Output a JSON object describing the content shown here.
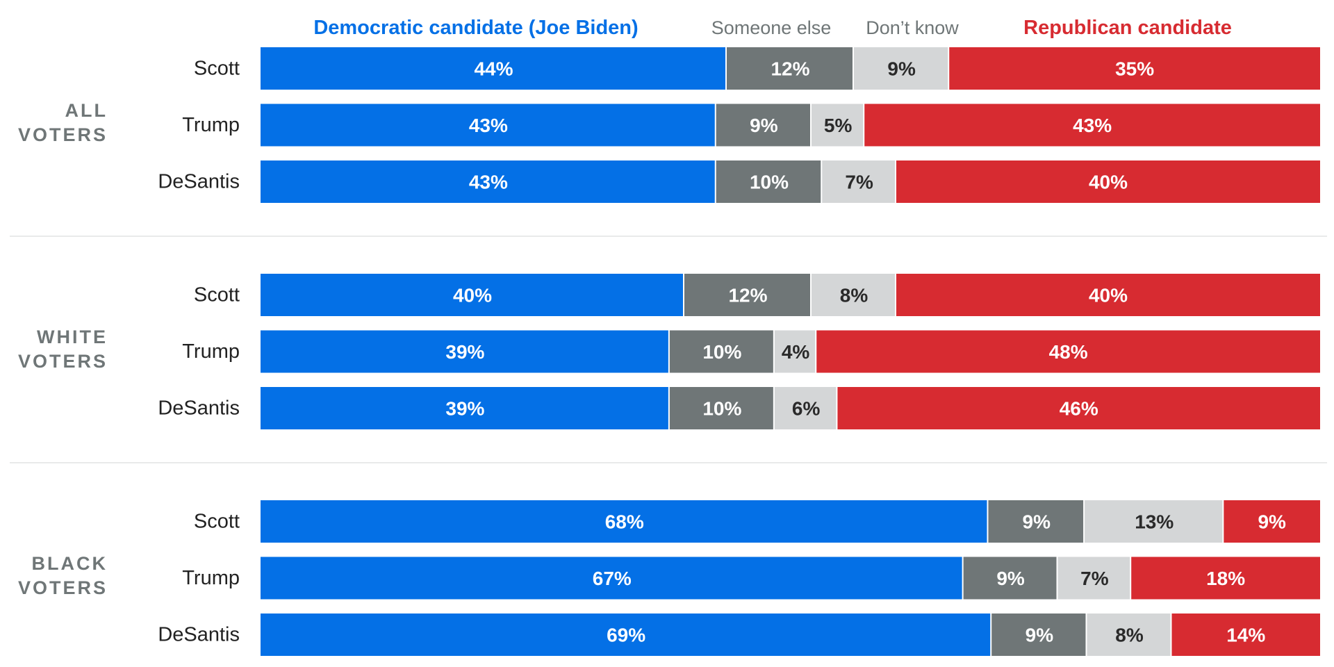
{
  "chart_data": {
    "type": "bar",
    "orientation": "horizontal",
    "stacked": true,
    "legend_placement": "top",
    "grid": false,
    "xlim": [
      0,
      100
    ],
    "legend": [
      {
        "key": "dem",
        "label": "Democratic candidate (Joe Biden)",
        "color": "#0470e6",
        "emphasis": true
      },
      {
        "key": "else",
        "label": "Someone else",
        "color": "#6f7677",
        "emphasis": false
      },
      {
        "key": "dk",
        "label": "Don’t know",
        "color": "#d4d6d7",
        "emphasis": false
      },
      {
        "key": "rep",
        "label": "Republican candidate",
        "color": "#d72b31",
        "emphasis": true
      }
    ],
    "label_colors": {
      "dem": "#ffffff",
      "else": "#ffffff",
      "dk": "#2a2a2a",
      "rep": "#ffffff"
    },
    "groups": [
      {
        "label_lines": [
          "ALL",
          "VOTERS"
        ],
        "rows": [
          {
            "label": "Scott",
            "values": [
              44,
              12,
              9,
              35
            ],
            "labels": [
              "44%",
              "12%",
              "9%",
              "35%"
            ]
          },
          {
            "label": "Trump",
            "values": [
              43,
              9,
              5,
              43
            ],
            "labels": [
              "43%",
              "9%",
              "5%",
              "43%"
            ]
          },
          {
            "label": "DeSantis",
            "values": [
              43,
              10,
              7,
              40
            ],
            "labels": [
              "43%",
              "10%",
              "7%",
              "40%"
            ]
          }
        ]
      },
      {
        "label_lines": [
          "WHITE",
          "VOTERS"
        ],
        "rows": [
          {
            "label": "Scott",
            "values": [
              40,
              12,
              8,
              40
            ],
            "labels": [
              "40%",
              "12%",
              "8%",
              "40%"
            ]
          },
          {
            "label": "Trump",
            "values": [
              39,
              10,
              4,
              48
            ],
            "labels": [
              "39%",
              "10%",
              "4%",
              "48%"
            ]
          },
          {
            "label": "DeSantis",
            "values": [
              39,
              10,
              6,
              46
            ],
            "labels": [
              "39%",
              "10%",
              "6%",
              "46%"
            ]
          }
        ]
      },
      {
        "label_lines": [
          "BLACK",
          "VOTERS"
        ],
        "rows": [
          {
            "label": "Scott",
            "values": [
              68,
              9,
              13,
              9
            ],
            "labels": [
              "68%",
              "9%",
              "13%",
              "9%"
            ]
          },
          {
            "label": "Trump",
            "values": [
              67,
              9,
              7,
              18
            ],
            "labels": [
              "67%",
              "9%",
              "7%",
              "18%"
            ]
          },
          {
            "label": "DeSantis",
            "values": [
              69,
              9,
              8,
              14
            ],
            "labels": [
              "69%",
              "9%",
              "8%",
              "14%"
            ]
          }
        ]
      }
    ]
  }
}
